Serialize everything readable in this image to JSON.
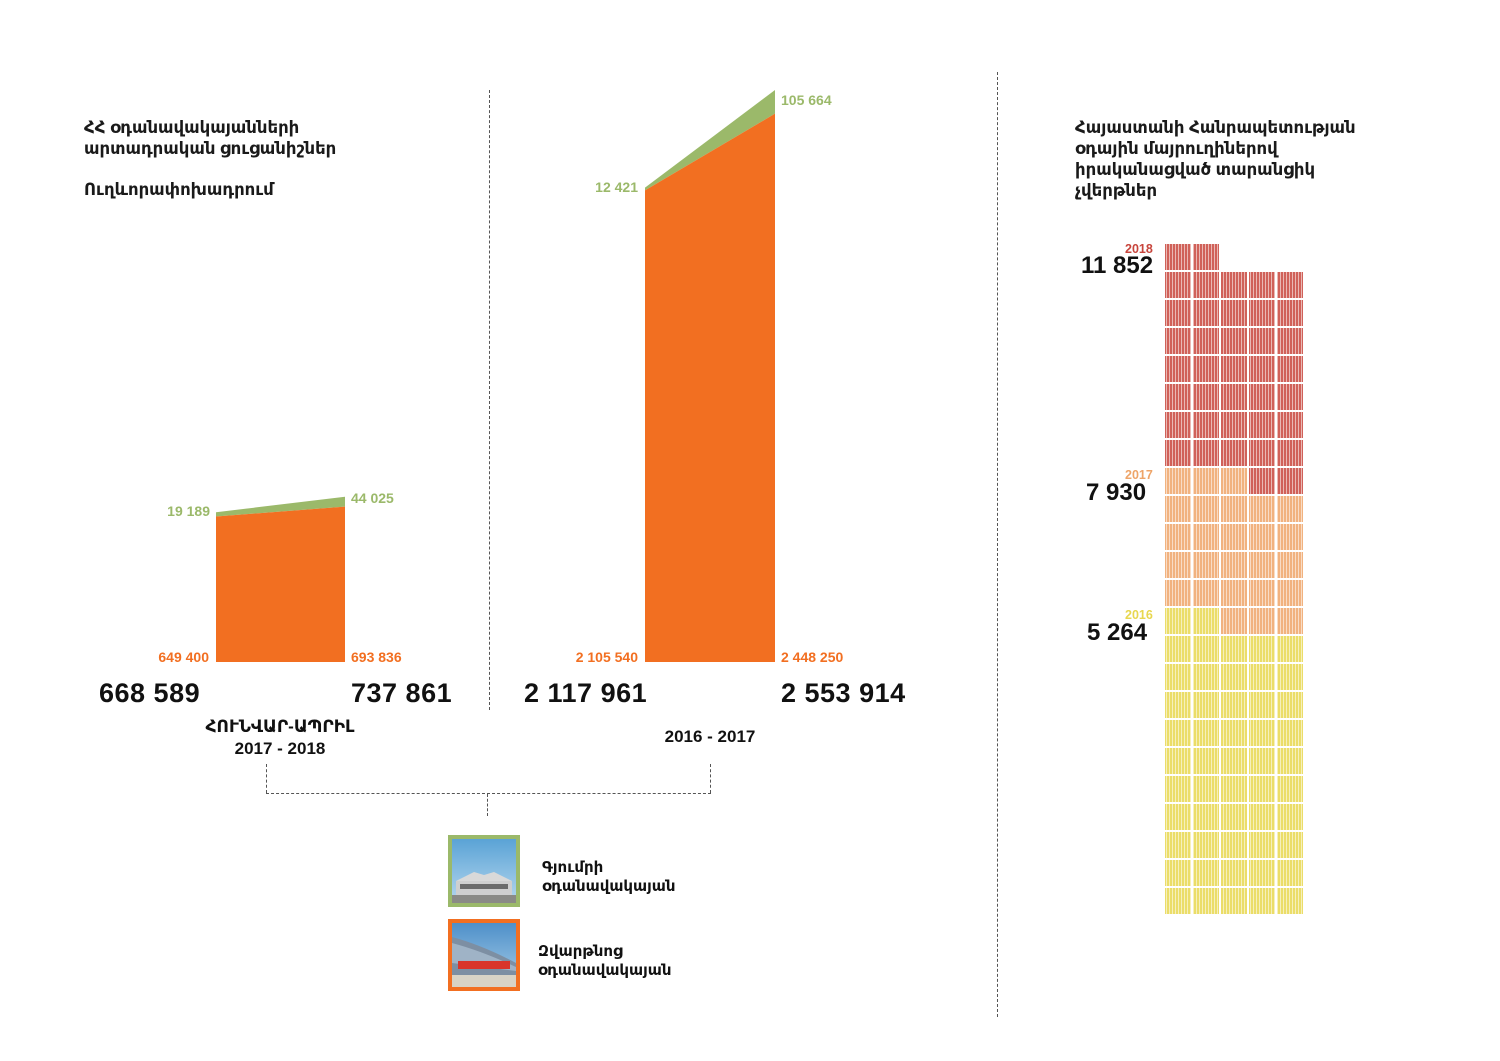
{
  "left_title": {
    "line1": "ՀՀ օդանավակայանների",
    "line2": "արտադրական ցուցանիշներ",
    "subtitle": "Ուղևորափոխադրում"
  },
  "right_title": {
    "line1": "Հայաստանի Հանրապետության",
    "line2": "օդային մայրուղիներով",
    "line3": "իրականացված տարանցիկ",
    "line4": "չվերթներ"
  },
  "chart_data": [
    {
      "type": "area",
      "title": "",
      "categories": [
        "2017",
        "2018"
      ],
      "period_line1": "ՀՈՒՆՎԱՐ-ԱՊՐԻԼ",
      "period_line2": "2017 - 2018",
      "series": [
        {
          "name": "Զվարթնոց օդանավակայան",
          "color": "#f26f21",
          "values": [
            649400,
            693836
          ],
          "labels": [
            "649 400",
            "693 836"
          ]
        },
        {
          "name": "Գյումրի օդանավակայան",
          "color": "#9bb96a",
          "values": [
            19189,
            44025
          ],
          "labels": [
            "19 189",
            "44 025"
          ]
        }
      ],
      "totals": [
        668589,
        737861
      ],
      "total_labels": [
        "668 589",
        "737 861"
      ]
    },
    {
      "type": "area",
      "title": "",
      "categories": [
        "2016",
        "2017"
      ],
      "period_line1": "2016 - 2017",
      "series": [
        {
          "name": "Զվարթնոց օդանավակայան",
          "color": "#f26f21",
          "values": [
            2105540,
            2448250
          ],
          "labels": [
            "2 105 540",
            "2 448 250"
          ]
        },
        {
          "name": "Գյումրի օդանավակայան",
          "color": "#9bb96a",
          "values": [
            12421,
            105664
          ],
          "labels": [
            "12 421",
            "105 664"
          ]
        }
      ],
      "totals": [
        2117961,
        2553914
      ],
      "total_labels": [
        "2 117 961",
        "2 553 914"
      ]
    },
    {
      "type": "waffle",
      "title": "",
      "categories": [
        "2016",
        "2017",
        "2018"
      ],
      "values": [
        5264,
        7930,
        11852
      ],
      "labels": [
        "5 264",
        "7 930",
        "11 852"
      ],
      "colors": [
        "#e8d74f",
        "#eea468",
        "#c8453c"
      ]
    }
  ],
  "legend": [
    {
      "line1": "Գյումրի",
      "line2": "օդանավակայան",
      "color": "#9bb96a"
    },
    {
      "line1": "Զվարթնոց",
      "line2": "օդանավակայան",
      "color": "#f26f21"
    }
  ]
}
